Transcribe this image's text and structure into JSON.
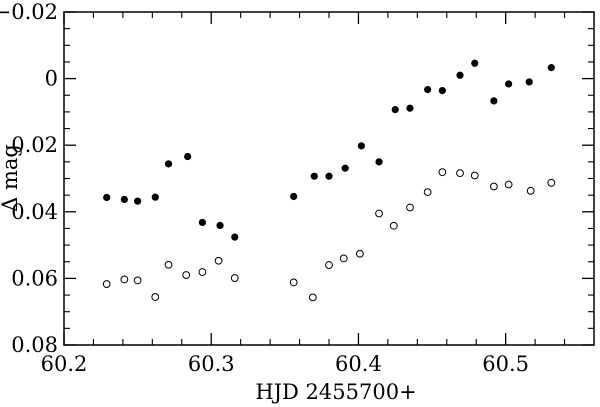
{
  "chart_data": {
    "type": "scatter",
    "title": "",
    "xlabel": "HJD 2455700+",
    "ylabel": "Δ mag",
    "xlim": [
      60.2,
      60.56
    ],
    "ylim": [
      0.08,
      -0.02
    ],
    "y_inverted": true,
    "grid": false,
    "x_ticks": [
      60.2,
      60.3,
      60.4,
      60.5
    ],
    "x_tick_labels": [
      "60.2",
      "60.3",
      "60.4",
      "60.5"
    ],
    "y_ticks": [
      -0.02,
      0,
      0.02,
      0.04,
      0.06,
      0.08
    ],
    "y_tick_labels": [
      "−0.02",
      "0",
      "0.02",
      "0.04",
      "0.06",
      "0.08"
    ],
    "series": [
      {
        "marker": "filled-circle",
        "color": "#000000",
        "points": [
          [
            60.229,
            0.0357
          ],
          [
            60.241,
            0.0363
          ],
          [
            60.25,
            0.0368
          ],
          [
            60.262,
            0.0356
          ],
          [
            60.271,
            0.0256
          ],
          [
            60.284,
            0.0234
          ],
          [
            60.294,
            0.0432
          ],
          [
            60.306,
            0.0441
          ],
          [
            60.316,
            0.0476
          ],
          [
            60.356,
            0.0354
          ],
          [
            60.37,
            0.0293
          ],
          [
            60.38,
            0.0293
          ],
          [
            60.391,
            0.0269
          ],
          [
            60.402,
            0.0202
          ],
          [
            60.414,
            0.025
          ],
          [
            60.425,
            0.0093
          ],
          [
            60.435,
            0.0089
          ],
          [
            60.447,
            0.0033
          ],
          [
            60.457,
            0.0036
          ],
          [
            60.469,
            -0.001
          ],
          [
            60.479,
            -0.0046
          ],
          [
            60.492,
            0.0067
          ],
          [
            60.502,
            0.0016
          ],
          [
            60.516,
            0.001
          ],
          [
            60.531,
            -0.0033
          ]
        ]
      },
      {
        "marker": "open-circle",
        "color": "#000000",
        "points": [
          [
            60.229,
            0.0617
          ],
          [
            60.241,
            0.0603
          ],
          [
            60.25,
            0.0606
          ],
          [
            60.262,
            0.0656
          ],
          [
            60.271,
            0.0559
          ],
          [
            60.283,
            0.059
          ],
          [
            60.294,
            0.0581
          ],
          [
            60.305,
            0.0547
          ],
          [
            60.316,
            0.0599
          ],
          [
            60.356,
            0.0612
          ],
          [
            60.369,
            0.0657
          ],
          [
            60.38,
            0.056
          ],
          [
            60.39,
            0.054
          ],
          [
            60.401,
            0.0526
          ],
          [
            60.414,
            0.0405
          ],
          [
            60.424,
            0.0442
          ],
          [
            60.435,
            0.0387
          ],
          [
            60.447,
            0.0341
          ],
          [
            60.457,
            0.0281
          ],
          [
            60.469,
            0.0284
          ],
          [
            60.479,
            0.0291
          ],
          [
            60.492,
            0.0324
          ],
          [
            60.502,
            0.0318
          ],
          [
            60.517,
            0.0337
          ],
          [
            60.531,
            0.0313
          ]
        ]
      }
    ]
  }
}
